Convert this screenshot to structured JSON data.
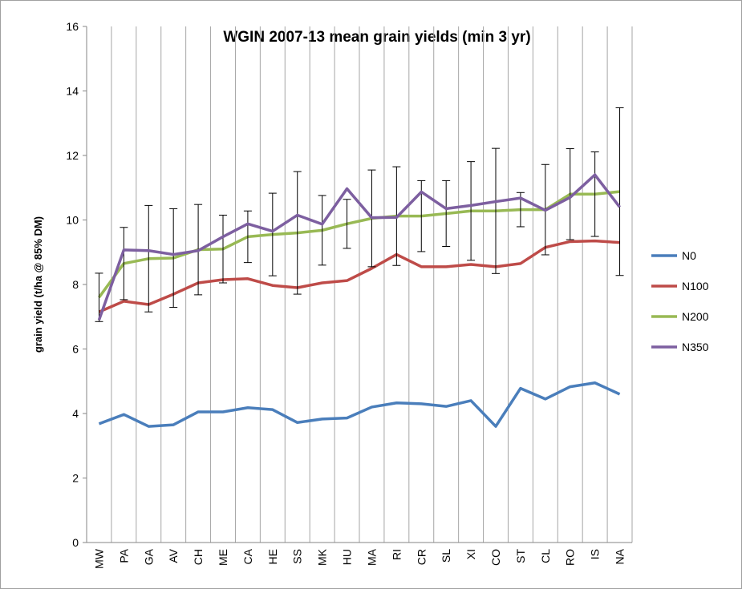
{
  "chart_data": {
    "type": "line",
    "title": "WGIN 2007-13 mean grain yields (min 3 yr)",
    "y_label": "grain yield (t/ha @ 85% DM)",
    "categories": [
      "MW",
      "PA",
      "GA",
      "AV",
      "CH",
      "ME",
      "CA",
      "HE",
      "SS",
      "MK",
      "HU",
      "MA",
      "RI",
      "CR",
      "SL",
      "XI",
      "CO",
      "ST",
      "CL",
      "RO",
      "IS",
      "NA"
    ],
    "series": [
      {
        "name": "N0",
        "color": "#4a7ebb",
        "values": [
          3.68,
          3.97,
          3.6,
          3.65,
          4.05,
          4.05,
          4.18,
          4.12,
          3.72,
          3.83,
          3.86,
          4.2,
          4.33,
          4.3,
          4.22,
          4.4,
          3.6,
          4.78,
          4.45,
          4.83,
          4.95,
          4.6
        ]
      },
      {
        "name": "N100",
        "color": "#be4b48",
        "values": [
          7.15,
          7.48,
          7.38,
          7.7,
          8.05,
          8.15,
          8.18,
          7.97,
          7.9,
          8.05,
          8.12,
          8.5,
          8.93,
          8.55,
          8.55,
          8.62,
          8.55,
          8.65,
          9.15,
          9.33,
          9.35,
          9.3
        ]
      },
      {
        "name": "N200",
        "color": "#98b954",
        "values": [
          7.6,
          8.65,
          8.8,
          8.82,
          9.08,
          9.1,
          9.48,
          9.55,
          9.6,
          9.68,
          9.88,
          10.05,
          10.12,
          10.12,
          10.2,
          10.28,
          10.28,
          10.32,
          10.32,
          10.8,
          10.8,
          10.88
        ],
        "errors": [
          0.75,
          1.12,
          1.65,
          1.53,
          1.4,
          1.05,
          0.8,
          1.28,
          1.9,
          1.08,
          0.76,
          1.5,
          1.53,
          1.1,
          1.02,
          1.53,
          1.94,
          0.53,
          1.4,
          1.41,
          1.31,
          2.6
        ]
      },
      {
        "name": "N350",
        "color": "#7d5fa0",
        "values": [
          6.9,
          9.07,
          9.05,
          8.93,
          9.05,
          9.48,
          9.88,
          9.65,
          10.15,
          9.87,
          10.97,
          10.07,
          10.08,
          10.87,
          10.35,
          10.45,
          10.57,
          10.68,
          10.3,
          10.7,
          11.4,
          10.4
        ]
      }
    ],
    "ylim": [
      0,
      16
    ],
    "yticks": [
      0,
      2,
      4,
      6,
      8,
      10,
      12,
      14,
      16
    ],
    "legend": "right"
  }
}
